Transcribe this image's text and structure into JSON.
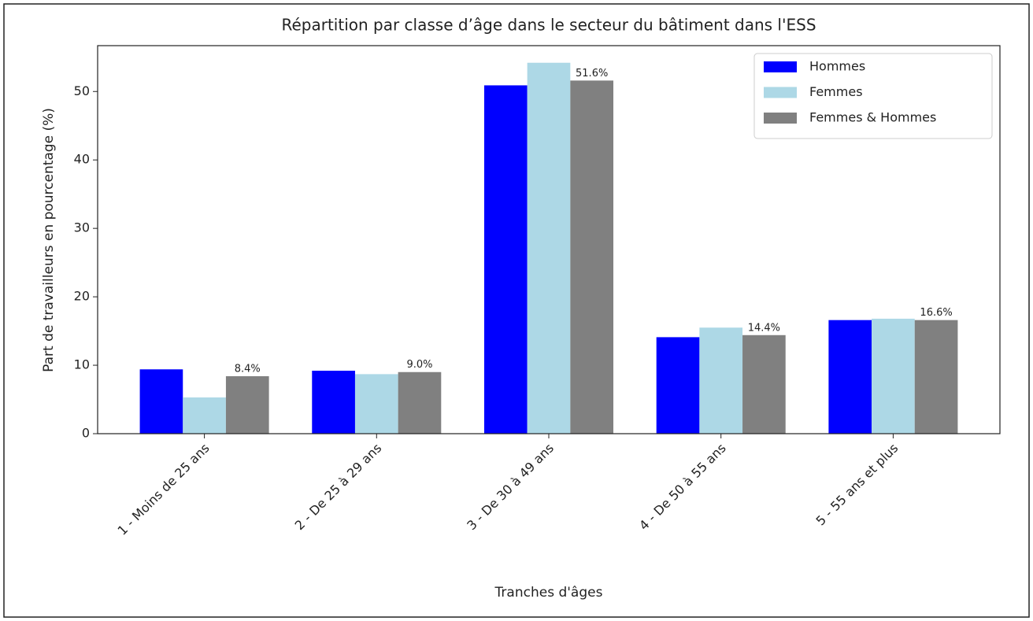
{
  "chart_data": {
    "type": "bar",
    "title": "Répartition par classe d’âge dans le secteur du bâtiment dans l'ESS",
    "xlabel": "Tranches d'âges",
    "ylabel": "Part de travailleurs en pourcentage (%)",
    "categories": [
      "1 - Moins de 25 ans",
      "2 - De 25 à 29 ans",
      "3 - De 30 à 49 ans",
      "4 - De 50 à 55 ans",
      "5 - 55 ans et plus"
    ],
    "series": [
      {
        "name": "Hommes",
        "color": "#0000ff",
        "values": [
          9.4,
          9.2,
          50.9,
          14.1,
          16.6
        ]
      },
      {
        "name": "Femmes",
        "color": "#add8e6",
        "values": [
          5.3,
          8.7,
          54.2,
          15.5,
          16.8
        ]
      },
      {
        "name": "Femmes & Hommes",
        "color": "#808080",
        "values": [
          8.4,
          9.0,
          51.6,
          14.4,
          16.6
        ],
        "value_labels": [
          "8.4%",
          "9.0%",
          "51.6%",
          "14.4%",
          "16.6%"
        ]
      }
    ],
    "ylim": [
      0,
      56.7
    ],
    "yticks": [
      0,
      10,
      20,
      30,
      40,
      50
    ],
    "grid": false,
    "legend": "upper right"
  }
}
